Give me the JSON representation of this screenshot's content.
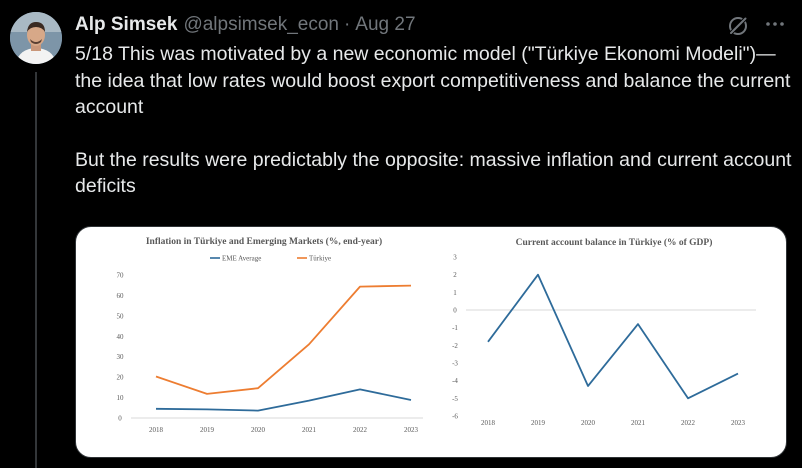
{
  "tweet": {
    "author_name": "Alp Simsek",
    "author_handle": "@alpsimsek_econ",
    "separator": "·",
    "date": "Aug 27",
    "paragraphs": [
      "5/18 This was motivated by a new economic model (\"Türkiye Ekonomi Modeli\")—the idea that low rates would boost export competitiveness and balance the current account",
      "But the results were predictably the opposite: massive inflation and current account deficits"
    ]
  },
  "icons": {
    "grok": "grok-icon",
    "more": "more-icon",
    "avatar": "avatar"
  },
  "colors": {
    "background": "#000000",
    "text": "#e7e9ea",
    "muted": "#71767b",
    "series_eme": "#2e6b9a",
    "series_turkiye": "#ed7d31"
  },
  "chart_data": [
    {
      "type": "line",
      "title": "Inflation in Türkiye and Emerging Markets (%, end-year)",
      "xlabel": "",
      "ylabel": "",
      "x": [
        "2018",
        "2019",
        "2020",
        "2021",
        "2022",
        "2023"
      ],
      "yticks": [
        0,
        10,
        20,
        30,
        40,
        50,
        60,
        70
      ],
      "ylim": [
        0,
        70
      ],
      "legend": "top-center",
      "grid": false,
      "series": [
        {
          "name": "EME Average",
          "color": "#2e6b9a",
          "values": [
            4.5,
            4.2,
            3.6,
            8.5,
            14.0,
            8.8
          ]
        },
        {
          "name": "Türkiye",
          "color": "#ed7d31",
          "values": [
            20.3,
            11.8,
            14.6,
            36.1,
            64.3,
            64.8
          ]
        }
      ]
    },
    {
      "type": "line",
      "title": "Current account balance in Türkiye (% of GDP)",
      "xlabel": "",
      "ylabel": "",
      "x": [
        "2018",
        "2019",
        "2020",
        "2021",
        "2022",
        "2023"
      ],
      "yticks": [
        3,
        2,
        1,
        0,
        -1,
        -2,
        -3,
        -4,
        -5,
        -6
      ],
      "ylim": [
        -6,
        3
      ],
      "grid": false,
      "series": [
        {
          "name": "",
          "color": "#2e6b9a",
          "values": [
            -1.8,
            2.0,
            -4.3,
            -0.8,
            -5.0,
            -3.6
          ]
        }
      ]
    }
  ]
}
